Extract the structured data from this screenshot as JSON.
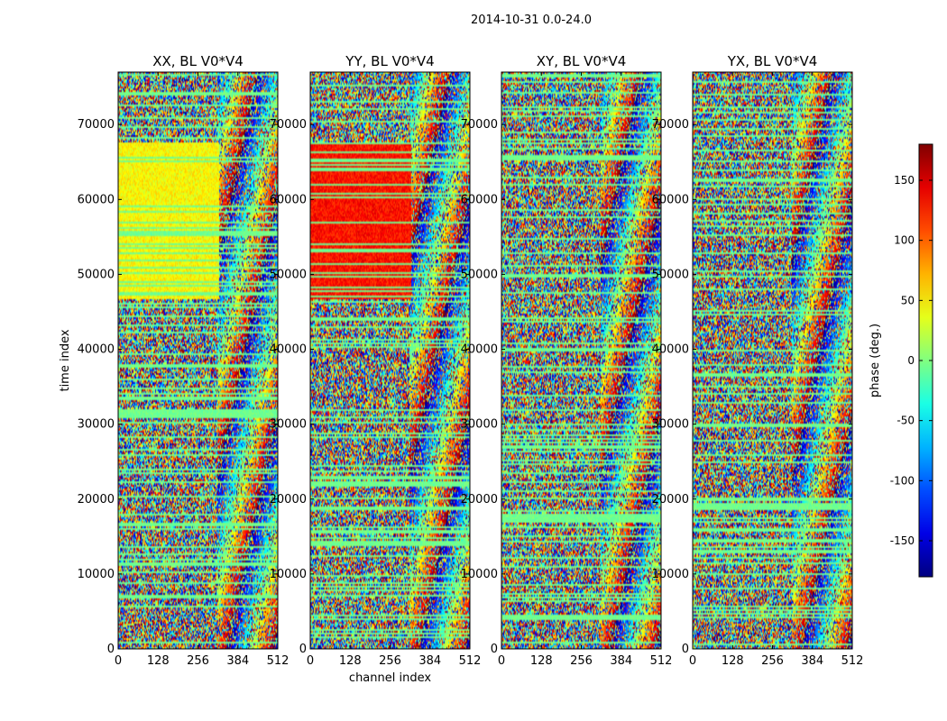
{
  "figure": {
    "title": "2014-10-31 0.0-24.0"
  },
  "chart_data": [
    {
      "type": "heatmap",
      "title": "XX, BL V0*V4",
      "xlabel": "",
      "ylabel": "time index",
      "xlim": [
        0,
        512
      ],
      "ylim": [
        0,
        77000
      ],
      "xticks": [
        0,
        128,
        256,
        384,
        512
      ],
      "yticks": [
        0,
        10000,
        20000,
        30000,
        40000,
        50000,
        60000,
        70000
      ],
      "coherent_phase_deg": 45,
      "coherent_channels": [
        0,
        325
      ]
    },
    {
      "type": "heatmap",
      "title": "YY, BL V0*V4",
      "xlabel": "channel index",
      "ylabel": "",
      "xlim": [
        0,
        512
      ],
      "ylim": [
        0,
        77000
      ],
      "xticks": [
        0,
        128,
        256,
        384,
        512
      ],
      "yticks": [
        0,
        10000,
        20000,
        30000,
        40000,
        50000,
        60000,
        70000
      ],
      "coherent_phase_deg": 130,
      "coherent_channels": [
        0,
        325
      ]
    },
    {
      "type": "heatmap",
      "title": "XY, BL V0*V4",
      "xlabel": "",
      "ylabel": "",
      "xlim": [
        0,
        512
      ],
      "ylim": [
        0,
        77000
      ],
      "xticks": [
        0,
        128,
        256,
        384,
        512
      ],
      "yticks": [
        0,
        10000,
        20000,
        30000,
        40000,
        50000,
        60000,
        70000
      ],
      "coherent_phase_deg": null,
      "coherent_channels": null
    },
    {
      "type": "heatmap",
      "title": "YX, BL V0*V4",
      "xlabel": "",
      "ylabel": "",
      "xlim": [
        0,
        512
      ],
      "ylim": [
        0,
        77000
      ],
      "xticks": [
        0,
        128,
        256,
        384,
        512
      ],
      "yticks": [
        0,
        10000,
        20000,
        30000,
        40000,
        50000,
        60000,
        70000
      ],
      "coherent_phase_deg": null,
      "coherent_channels": null
    }
  ],
  "colorbar": {
    "label": "phase (deg.)",
    "range": [
      -180,
      180
    ],
    "ticks": [
      -150,
      -100,
      -50,
      0,
      50,
      100,
      150
    ],
    "colormap": "jet"
  }
}
